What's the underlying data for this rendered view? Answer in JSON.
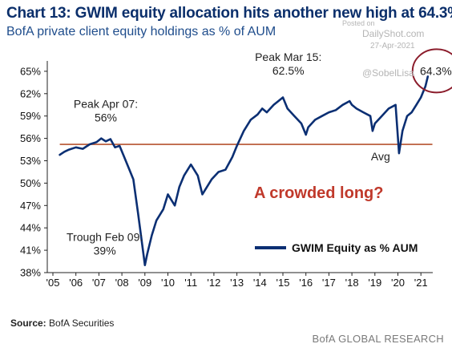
{
  "header": {
    "title": "Chart 13: GWIM equity allocation hits another new high at 64.3%",
    "subtitle": "BofA private client equity holdings as % of AUM"
  },
  "watermark": {
    "posted": "Posted on",
    "site": "DailyShot.com",
    "date": "27-Apr-2021",
    "handle": "@SobelLisa"
  },
  "footer": {
    "source_label": "Source:",
    "source_value": "BofA Securities",
    "brand": "BofA GLOBAL RESEARCH"
  },
  "colors": {
    "series": "#0b2f73",
    "avg_line": "#b5532f",
    "callout": "#c0392b",
    "circle": "#8b1c2b"
  },
  "chart_data": {
    "type": "line",
    "title": "Chart 13: GWIM equity allocation hits another new high at 64.3%",
    "subtitle": "BofA private client equity holdings as % of AUM",
    "xlabel": "",
    "ylabel": "",
    "x_ticks": [
      "'05",
      "'06",
      "'07",
      "'08",
      "'09",
      "'10",
      "'11",
      "'12",
      "'13",
      "'14",
      "'15",
      "'16",
      "'17",
      "'18",
      "'19",
      "'20",
      "'21"
    ],
    "y_ticks": [
      "38%",
      "41%",
      "44%",
      "47%",
      "50%",
      "53%",
      "56%",
      "59%",
      "62%",
      "65%"
    ],
    "ylim": [
      38,
      66
    ],
    "xlim": [
      2005.0,
      2021.9
    ],
    "grid": false,
    "legend": {
      "position": "bottom-right",
      "entries": [
        "GWIM Equity as % AUM"
      ]
    },
    "series": [
      {
        "name": "GWIM Equity as % AUM",
        "x": [
          2005.3,
          2005.5,
          2005.7,
          2006.0,
          2006.3,
          2006.6,
          2006.9,
          2007.1,
          2007.3,
          2007.5,
          2007.7,
          2007.9,
          2008.1,
          2008.3,
          2008.5,
          2008.7,
          2008.85,
          2009.0,
          2009.1,
          2009.3,
          2009.5,
          2009.8,
          2010.0,
          2010.3,
          2010.5,
          2010.7,
          2011.0,
          2011.3,
          2011.5,
          2011.7,
          2011.9,
          2012.2,
          2012.5,
          2012.8,
          2013.0,
          2013.3,
          2013.6,
          2013.9,
          2014.1,
          2014.3,
          2014.6,
          2014.8,
          2015.0,
          2015.2,
          2015.5,
          2015.8,
          2016.0,
          2016.1,
          2016.4,
          2016.7,
          2017.0,
          2017.3,
          2017.6,
          2017.9,
          2018.0,
          2018.2,
          2018.5,
          2018.8,
          2018.9,
          2019.0,
          2019.3,
          2019.6,
          2019.9,
          2020.05,
          2020.2,
          2020.4,
          2020.6,
          2020.8,
          2021.0,
          2021.2,
          2021.3
        ],
        "values": [
          53.8,
          54.2,
          54.5,
          54.8,
          54.6,
          55.2,
          55.5,
          56.0,
          55.6,
          55.9,
          54.8,
          55.0,
          53.5,
          52.0,
          50.5,
          46.0,
          42.5,
          39.0,
          40.5,
          43.0,
          45.0,
          46.5,
          48.5,
          47.0,
          49.5,
          51.0,
          52.5,
          51.0,
          48.5,
          49.5,
          50.5,
          51.5,
          51.8,
          53.5,
          55.0,
          57.0,
          58.5,
          59.2,
          60.0,
          59.5,
          60.5,
          61.0,
          61.5,
          60.0,
          59.0,
          58.0,
          56.5,
          57.5,
          58.5,
          59.0,
          59.5,
          59.8,
          60.5,
          61.0,
          60.5,
          60.0,
          59.5,
          59.0,
          57.0,
          58.0,
          59.0,
          60.0,
          60.5,
          54.0,
          57.0,
          59.0,
          59.5,
          60.5,
          61.5,
          63.0,
          64.3
        ]
      }
    ],
    "reference_line": {
      "label": "Avg",
      "value": 55.2
    },
    "annotations": [
      {
        "id": "peak07",
        "lines": [
          "Peak Apr 07:",
          "56%"
        ],
        "x": 2007.3,
        "y": 56.0
      },
      {
        "id": "trough09",
        "lines": [
          "Trough Feb 09:",
          "39%"
        ],
        "x": 2009.1,
        "y": 39.0
      },
      {
        "id": "peak15",
        "lines": [
          "Peak Mar 15:",
          "62.5%"
        ],
        "x": 2015.2,
        "y": 62.5
      },
      {
        "id": "latest",
        "lines": [
          "64.3%"
        ],
        "x": 2021.3,
        "y": 64.3
      },
      {
        "id": "avg",
        "lines": [
          "Avg"
        ],
        "x": 2019.0,
        "y": 55.2
      }
    ],
    "callout": "A crowded long?"
  }
}
